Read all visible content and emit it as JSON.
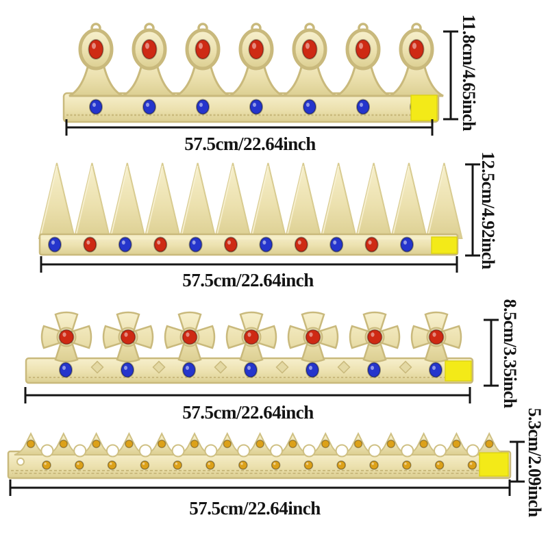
{
  "colors": {
    "gold_light": "#f7f0cd",
    "gold": "#ece1af",
    "gold_deep": "#dccf92",
    "gold_trim": "#c9b97c",
    "gem_red": "#ce2a14",
    "gem_blue": "#2535cc",
    "gem_amber": "#dca11a",
    "velcro_yellow": "#f3ea18",
    "dimension": "#151515"
  },
  "crowns": [
    {
      "id": "royal-arch-crown",
      "width_label": "57.5cm/22.64inch",
      "height_label": "11.8cm/4.65inch",
      "peaks": 7,
      "top_gem_color": "red",
      "band_gem_color": "blue",
      "band_gem_count": 7
    },
    {
      "id": "spike-crown",
      "width_label": "57.5cm/22.64inch",
      "height_label": "12.5cm/4.92inch",
      "spikes": 12,
      "band_gem_count": 11,
      "band_gem_pattern": [
        "blue",
        "red"
      ]
    },
    {
      "id": "cross-crown",
      "width_label": "57.5cm/22.64inch",
      "height_label": "8.5cm/3.35inch",
      "crosses": 7,
      "center_gem_color": "red",
      "band_gem_color": "blue",
      "band_gem_count": 7
    },
    {
      "id": "points-crown",
      "width_label": "57.5cm/22.64inch",
      "height_label": "5.3cm/2.09inch",
      "peaks": 15,
      "gem_color": "amber",
      "band_gem_count": 14
    }
  ]
}
